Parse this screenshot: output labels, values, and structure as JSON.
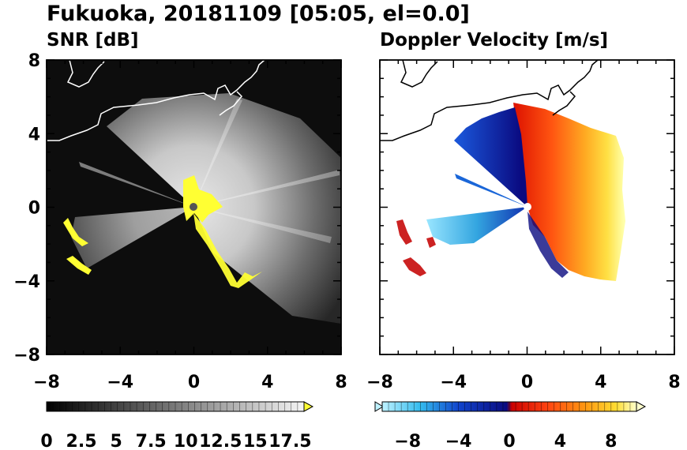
{
  "figure": {
    "title": "Fukuoka, 20181109 [05:05, el=0.0]",
    "radar_origin": [
      0,
      0
    ]
  },
  "chart_data": [
    {
      "type": "heatmap",
      "title": "SNR [dB]",
      "xlabel": "",
      "ylabel": "",
      "xlim": [
        -8,
        8
      ],
      "ylim": [
        -8,
        8
      ],
      "x_ticks": [
        "−8",
        "−4",
        "0",
        "4",
        "8"
      ],
      "y_ticks": [
        "8",
        "4",
        "0",
        "−4",
        "−8"
      ],
      "x_tick_values": [
        -8,
        -4,
        0,
        4,
        8
      ],
      "y_tick_values": [
        8,
        4,
        0,
        -4,
        -8
      ],
      "background_color": "#0d0d0d",
      "colorbar": {
        "range": [
          0,
          18.5
        ],
        "labels": [
          "0",
          "2.5",
          "5",
          "7.5",
          "10",
          "12.5",
          "15",
          "17.5"
        ],
        "label_values": [
          0,
          2.5,
          5,
          7.5,
          10,
          12.5,
          15,
          17.5
        ],
        "colors": [
          "#000000",
          "#ffffff"
        ],
        "extend_color": "#ffff33"
      },
      "coastline_color": "#ffffff"
    },
    {
      "type": "heatmap",
      "title": "Doppler Velocity [m/s]",
      "xlabel": "",
      "ylabel": "",
      "xlim": [
        -8,
        8
      ],
      "ylim": [
        -8,
        8
      ],
      "x_ticks": [
        "−8",
        "−4",
        "0",
        "4",
        "8"
      ],
      "x_tick_values": [
        -8,
        -4,
        0,
        4,
        8
      ],
      "y_tick_values": [
        8,
        4,
        0,
        -4,
        -8
      ],
      "background_color": "#ffffff",
      "colorbar": {
        "range": [
          -10,
          10
        ],
        "labels": [
          "−8",
          "−4",
          "0",
          "4",
          "8"
        ],
        "label_values": [
          -8,
          -4,
          0,
          4,
          8
        ],
        "colors": [
          "#bff2ff",
          "#33bbee",
          "#1144cc",
          "#0a0a80",
          "#cc0000",
          "#ff4411",
          "#ff9911",
          "#ffdd33",
          "#ffffcc"
        ]
      },
      "coastline_color": "#000000"
    }
  ]
}
